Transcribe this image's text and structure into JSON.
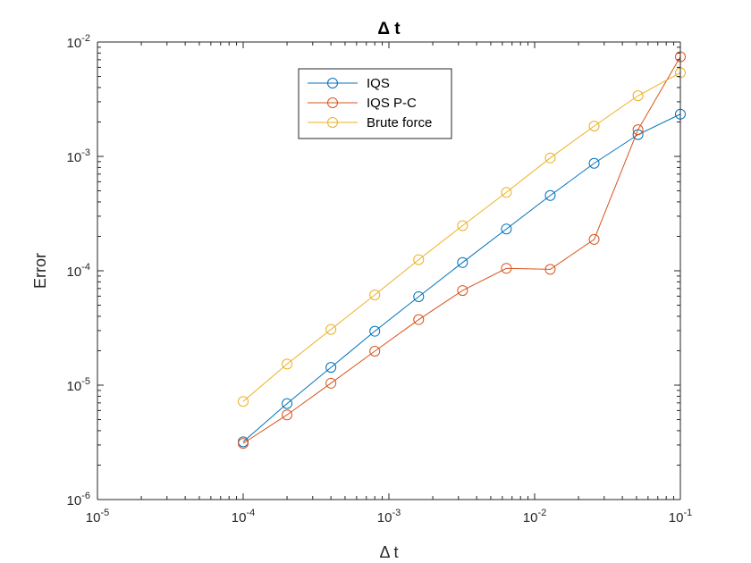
{
  "chart_data": {
    "type": "line",
    "title": "Δ t",
    "xlabel": "Δ t",
    "ylabel": "Error",
    "xscale": "log",
    "yscale": "log",
    "xlim": [
      1e-05,
      0.1
    ],
    "ylim": [
      1e-06,
      0.01
    ],
    "x_ticks": [
      {
        "base": "10",
        "exp": "-5"
      },
      {
        "base": "10",
        "exp": "-4"
      },
      {
        "base": "10",
        "exp": "-3"
      },
      {
        "base": "10",
        "exp": "-2"
      },
      {
        "base": "10",
        "exp": "-1"
      }
    ],
    "y_ticks": [
      {
        "base": "10",
        "exp": "-6"
      },
      {
        "base": "10",
        "exp": "-5"
      },
      {
        "base": "10",
        "exp": "-4"
      },
      {
        "base": "10",
        "exp": "-3"
      },
      {
        "base": "10",
        "exp": "-2"
      }
    ],
    "grid": false,
    "legend_position": "top-center",
    "marker": "circle",
    "x": [
      0.0001,
      0.0002,
      0.0004,
      0.0008,
      0.0016,
      0.0032,
      0.0064,
      0.0128,
      0.0256,
      0.0512,
      0.1
    ],
    "series": [
      {
        "name": "IQS",
        "color": "#0072BD",
        "values": [
          3.2e-06,
          6.9e-06,
          1.43e-05,
          2.96e-05,
          5.94e-05,
          0.000118,
          0.000232,
          0.000455,
          0.00087,
          0.00155,
          0.00234
        ]
      },
      {
        "name": "IQS P-C",
        "color": "#D95319",
        "values": [
          3.1e-06,
          5.5e-06,
          1.04e-05,
          1.98e-05,
          3.74e-05,
          6.72e-05,
          0.000105,
          0.000103,
          0.000188,
          0.00171,
          0.00743
        ]
      },
      {
        "name": "Brute force",
        "color": "#EDB120",
        "values": [
          7.2e-06,
          1.53e-05,
          3.07e-05,
          6.15e-05,
          0.000125,
          0.000248,
          0.000485,
          0.00097,
          0.00184,
          0.00339,
          0.00539
        ]
      }
    ]
  }
}
